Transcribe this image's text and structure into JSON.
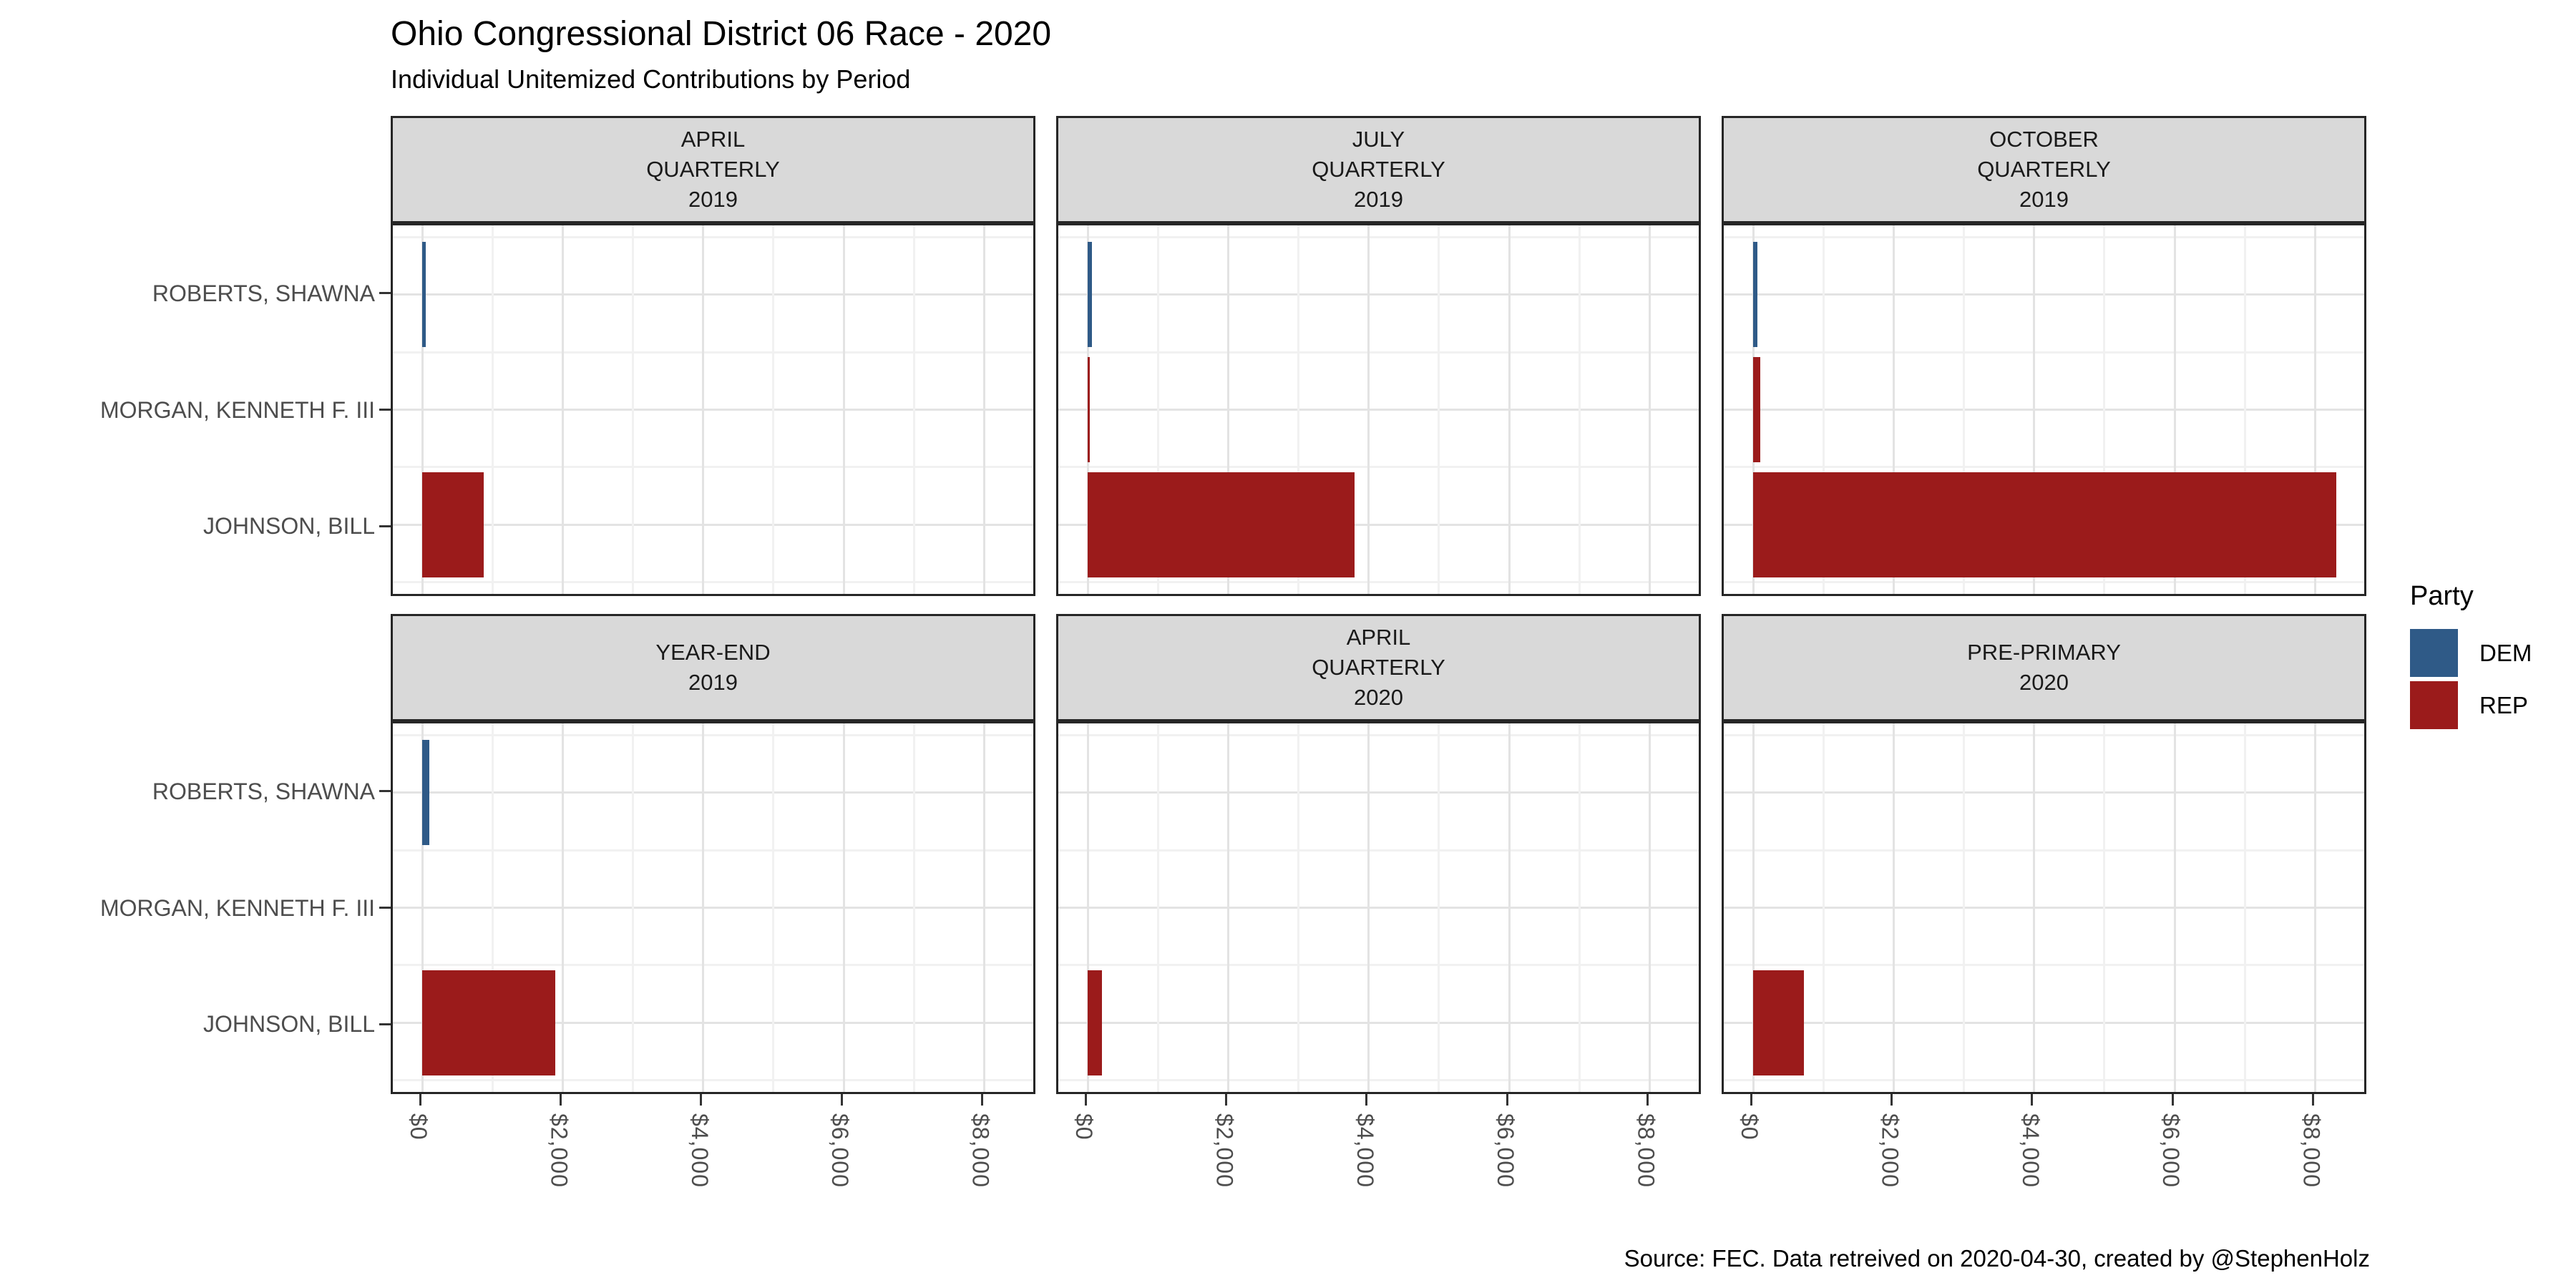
{
  "header": {
    "title": "Ohio Congressional District 06 Race - 2020",
    "subtitle": "Individual Unitemized Contributions by Period"
  },
  "caption": "Source: FEC. Data retreived on 2020-04-30, created by @StephenHolz",
  "legend": {
    "title": "Party",
    "entries": [
      {
        "label": "DEM",
        "color": "#2F5A87"
      },
      {
        "label": "REP",
        "color": "#9B1B1B"
      }
    ]
  },
  "colors": {
    "dem_blue": "#2F5A87",
    "rep_red": "#9B1B1B",
    "strip_fill": "#D9D9D9",
    "panel_border": "#262626",
    "axis_text": "#4D4D4D",
    "grid_major": "#E3E3E3",
    "grid_minor": "#F1F1F1"
  },
  "chart_data": {
    "type": "bar",
    "orientation": "horizontal",
    "title": "Ohio Congressional District 06 Race - 2020",
    "subtitle": "Individual Unitemized Contributions by Period",
    "legend_title": "Party",
    "legend_position": "right",
    "grid": true,
    "categories": [
      "ROBERTS, SHAWNA",
      "MORGAN, KENNETH F. III",
      "JOHNSON, BILL"
    ],
    "category_parties": [
      "DEM",
      "REP",
      "REP"
    ],
    "series_colors": {
      "DEM": "#2F5A87",
      "REP": "#9B1B1B"
    },
    "x_ticks": [
      "$0",
      "$2,000",
      "$4,000",
      "$6,000",
      "$8,000"
    ],
    "x_tick_values": [
      0,
      2000,
      4000,
      6000,
      8000
    ],
    "xlim": [
      -420,
      8760
    ],
    "facets": [
      {
        "label": "APRIL\nQUARTERLY\n2019",
        "values": [
          50,
          0,
          870
        ]
      },
      {
        "label": "JULY\nQUARTERLY\n2019",
        "values": [
          60,
          25,
          3800
        ]
      },
      {
        "label": "OCTOBER\nQUARTERLY\n2019",
        "values": [
          60,
          100,
          8300
        ]
      },
      {
        "label": "YEAR-END\n2019",
        "values": [
          100,
          0,
          1890
        ]
      },
      {
        "label": "APRIL\nQUARTERLY\n2020",
        "values": [
          0,
          0,
          200
        ]
      },
      {
        "label": "PRE-PRIMARY\n2020",
        "values": [
          0,
          0,
          720
        ]
      }
    ]
  }
}
